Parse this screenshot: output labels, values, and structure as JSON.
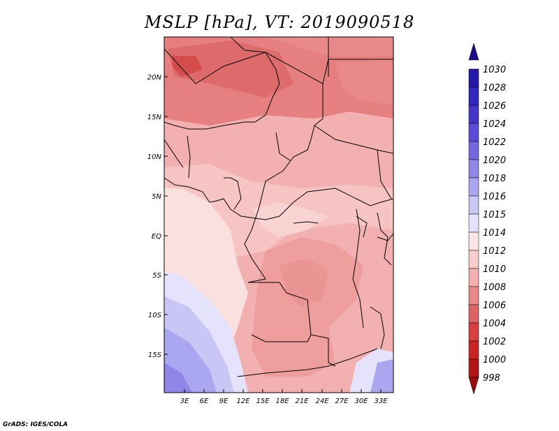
{
  "header": {
    "title": "MSLP [hPa], VT: 2019090518"
  },
  "footer": {
    "credit": "GrADS: IGES/COLA"
  },
  "map": {
    "lat_labels": [
      "20N",
      "15N",
      "10N",
      "5N",
      "EQ",
      "5S",
      "10S",
      "15S"
    ],
    "lon_labels": [
      "3E",
      "6E",
      "9E",
      "12E",
      "15E",
      "18E",
      "21E",
      "24E",
      "27E",
      "30E",
      "33E"
    ]
  },
  "colorbar": {
    "labels": [
      "1030",
      "1028",
      "1026",
      "1024",
      "1022",
      "1020",
      "1018",
      "1016",
      "1015",
      "1014",
      "1012",
      "1010",
      "1008",
      "1006",
      "1004",
      "1002",
      "1000",
      "998"
    ],
    "colors": [
      "#1a0a8c",
      "#2419a8",
      "#3226c0",
      "#4436cc",
      "#5a4cd6",
      "#7366e0",
      "#8f86e8",
      "#aba6f0",
      "#c9c6f6",
      "#e4e3fb",
      "#fbe4e4",
      "#f8cccc",
      "#f3aeae",
      "#e98888",
      "#de6464",
      "#d64040",
      "#c82424",
      "#b41414",
      "#9c0c0c"
    ]
  }
}
